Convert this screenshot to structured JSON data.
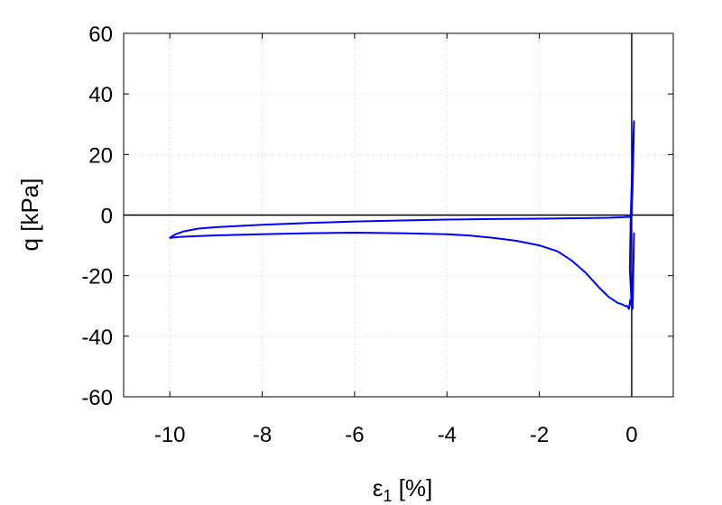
{
  "chart_data": {
    "type": "line",
    "xlabel": "ε1 [%]",
    "xlabel_main": "ε",
    "xlabel_sub": "1",
    "xlabel_unit": " [%]",
    "ylabel": "q [kPa]",
    "xlim": [
      -11,
      0.9
    ],
    "ylim": [
      -60,
      60
    ],
    "xticks": [
      -10,
      -8,
      -6,
      -4,
      -2,
      0
    ],
    "yticks": [
      -60,
      -40,
      -20,
      0,
      20,
      40,
      60
    ],
    "grid": true,
    "zero_lines": true,
    "series": [
      {
        "color": "#0000ff",
        "x": [
          0.0,
          0.02,
          0.04,
          0.05,
          0.02,
          -0.02,
          -0.04,
          0.0,
          0.03,
          0.05,
          0.02,
          -0.03,
          -0.06,
          -0.1,
          -0.15,
          -0.2,
          -0.3,
          -0.5,
          -0.7,
          -1.0,
          -1.3,
          -1.6,
          -2.0,
          -2.5,
          -3.0,
          -3.5,
          -4.0,
          -5.0,
          -6.0,
          -7.0,
          -8.0,
          -9.0,
          -9.5,
          -9.8,
          -10.0,
          -9.9,
          -9.7,
          -9.4,
          -9.0,
          -8.0,
          -7.0,
          -6.0,
          -5.0,
          -4.0,
          -3.0,
          -2.0,
          -1.0,
          -0.5,
          -0.2,
          0.0
        ],
        "y": [
          0,
          10,
          24,
          31,
          20,
          0,
          -18,
          -30,
          -22,
          -6,
          -31,
          -28,
          -31,
          -30,
          -30,
          -29.5,
          -29,
          -27,
          -24,
          -19,
          -15,
          -12,
          -10,
          -8.5,
          -7.5,
          -6.8,
          -6.3,
          -6.0,
          -5.8,
          -6.0,
          -6.3,
          -6.7,
          -7.0,
          -7.2,
          -7.5,
          -6.5,
          -5.4,
          -4.5,
          -4.0,
          -3.2,
          -2.6,
          -2.1,
          -1.8,
          -1.5,
          -1.3,
          -1.2,
          -1.0,
          -0.9,
          -0.7,
          -0.5
        ]
      }
    ]
  }
}
